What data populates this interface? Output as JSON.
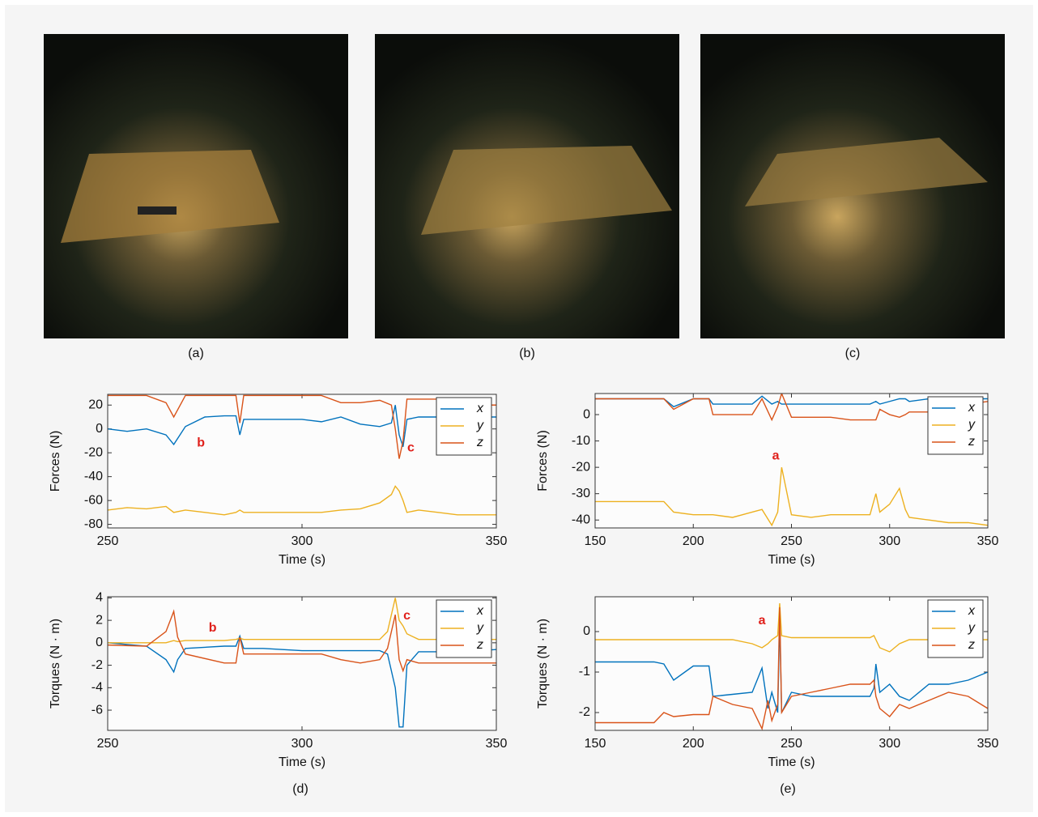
{
  "figure": {
    "photo_captions": [
      "(a)",
      "(b)",
      "(c)"
    ],
    "chart_captions": [
      "(d)",
      "(e)"
    ]
  },
  "chart_data": [
    {
      "type": "line",
      "xlabel": "Time (s)",
      "ylabel": "Forces (N)",
      "legend": "upper right",
      "xlim": [
        250,
        350
      ],
      "xticks": [
        250,
        300,
        350
      ],
      "ylim": [
        -83,
        29
      ],
      "yticks": [
        20,
        0,
        -20,
        -40,
        -60,
        -80
      ],
      "annotations": [
        "b",
        "c"
      ],
      "x": [
        250,
        255,
        260,
        265,
        267,
        270,
        275,
        280,
        283,
        284,
        285,
        290,
        300,
        305,
        310,
        315,
        320,
        323,
        324,
        325,
        326,
        327,
        330,
        335,
        340,
        345,
        350
      ],
      "series": [
        {
          "name": "x",
          "color": "#0072bd",
          "values": [
            0,
            -2,
            0,
            -5,
            -13,
            2,
            10,
            11,
            11,
            -5,
            8,
            8,
            8,
            6,
            10,
            4,
            2,
            5,
            20,
            -5,
            -15,
            8,
            10,
            10,
            10,
            10,
            10
          ]
        },
        {
          "name": "y",
          "color": "#edb120",
          "values": [
            -68,
            -66,
            -67,
            -65,
            -70,
            -68,
            -70,
            -72,
            -70,
            -68,
            -70,
            -70,
            -70,
            -70,
            -68,
            -67,
            -62,
            -55,
            -48,
            -52,
            -60,
            -70,
            -68,
            -70,
            -72,
            -72,
            -72
          ]
        },
        {
          "name": "z",
          "color": "#d95319",
          "values": [
            28,
            28,
            28,
            22,
            10,
            28,
            28,
            28,
            28,
            5,
            28,
            28,
            28,
            28,
            22,
            22,
            24,
            20,
            0,
            -25,
            -10,
            25,
            25,
            25,
            20,
            20,
            20
          ]
        }
      ]
    },
    {
      "type": "line",
      "xlabel": "Time (s)",
      "ylabel": "Forces (N)",
      "legend": "upper right",
      "xlim": [
        150,
        350
      ],
      "xticks": [
        150,
        200,
        250,
        300,
        350
      ],
      "ylim": [
        -43,
        8
      ],
      "yticks": [
        0,
        -10,
        -20,
        -30,
        -40
      ],
      "annotations": [
        "a"
      ],
      "x": [
        150,
        170,
        185,
        190,
        200,
        208,
        210,
        220,
        230,
        235,
        240,
        243,
        245,
        250,
        260,
        270,
        280,
        290,
        293,
        295,
        300,
        305,
        308,
        310,
        320,
        330,
        340,
        350
      ],
      "series": [
        {
          "name": "x",
          "color": "#0072bd",
          "values": [
            6,
            6,
            6,
            3,
            6,
            6,
            4,
            4,
            4,
            7,
            4,
            5,
            4,
            4,
            4,
            4,
            4,
            4,
            5,
            4,
            5,
            6,
            6,
            5,
            6,
            6,
            6,
            6
          ]
        },
        {
          "name": "y",
          "color": "#edb120",
          "values": [
            -33,
            -33,
            -33,
            -37,
            -38,
            -38,
            -38,
            -39,
            -37,
            -36,
            -42,
            -37,
            -20,
            -38,
            -39,
            -38,
            -38,
            -38,
            -30,
            -37,
            -34,
            -28,
            -36,
            -39,
            -40,
            -41,
            -41,
            -42
          ]
        },
        {
          "name": "z",
          "color": "#d95319",
          "values": [
            6,
            6,
            6,
            2,
            6,
            6,
            0,
            0,
            0,
            6,
            -2,
            3,
            8,
            -1,
            -1,
            -1,
            -2,
            -2,
            -2,
            2,
            0,
            -1,
            0,
            1,
            1,
            2,
            4,
            5
          ]
        }
      ]
    },
    {
      "type": "line",
      "xlabel": "Time (s)",
      "ylabel": "Torques (N · m)",
      "legend": "upper right",
      "xlim": [
        250,
        350
      ],
      "xticks": [
        250,
        300,
        350
      ],
      "ylim": [
        -7.8,
        4.1
      ],
      "yticks": [
        4,
        2,
        0,
        -2,
        -4,
        -6
      ],
      "annotations": [
        "b",
        "c"
      ],
      "x": [
        250,
        260,
        265,
        267,
        268,
        270,
        280,
        283,
        284,
        285,
        290,
        300,
        305,
        310,
        315,
        320,
        322,
        324,
        325,
        326,
        327,
        330,
        340,
        350
      ],
      "series": [
        {
          "name": "x",
          "color": "#0072bd",
          "values": [
            0,
            -0.3,
            -1.5,
            -2.6,
            -1.5,
            -0.5,
            -0.3,
            -0.3,
            0.6,
            -0.5,
            -0.5,
            -0.7,
            -0.7,
            -0.7,
            -0.7,
            -0.7,
            -1,
            -4,
            -7.5,
            -7.5,
            -2,
            -0.8,
            -0.8,
            -0.6
          ]
        },
        {
          "name": "y",
          "color": "#edb120",
          "values": [
            0,
            0,
            0,
            0.2,
            0.1,
            0.2,
            0.2,
            0.3,
            0.4,
            0.3,
            0.3,
            0.3,
            0.3,
            0.3,
            0.3,
            0.3,
            1,
            4,
            2,
            1.5,
            0.8,
            0.3,
            0.3,
            0.3
          ]
        },
        {
          "name": "z",
          "color": "#d95319",
          "values": [
            -0.2,
            -0.3,
            1,
            2.8,
            0.5,
            -1,
            -1.8,
            -1.8,
            0.5,
            -1,
            -1,
            -1,
            -1,
            -1.5,
            -1.8,
            -1.5,
            -0.5,
            2.5,
            -1.5,
            -2.5,
            -1.5,
            -1.8,
            -1.8,
            -1.8
          ]
        }
      ]
    },
    {
      "type": "line",
      "xlabel": "Time (s)",
      "ylabel": "Torques (N · m)",
      "legend": "upper right",
      "xlim": [
        150,
        350
      ],
      "xticks": [
        150,
        200,
        250,
        300,
        350
      ],
      "ylim": [
        -2.44,
        0.86
      ],
      "yticks": [
        0,
        -1,
        -2
      ],
      "annotations": [
        "a"
      ],
      "x": [
        150,
        180,
        185,
        190,
        200,
        208,
        210,
        220,
        230,
        235,
        238,
        240,
        243,
        244,
        245,
        250,
        260,
        270,
        280,
        290,
        292,
        293,
        295,
        300,
        305,
        310,
        320,
        330,
        340,
        350
      ],
      "series": [
        {
          "name": "x",
          "color": "#0072bd",
          "values": [
            -0.75,
            -0.75,
            -0.8,
            -1.2,
            -0.85,
            -0.85,
            -1.6,
            -1.55,
            -1.5,
            -0.9,
            -1.9,
            -1.5,
            -2,
            0.3,
            -2,
            -1.5,
            -1.6,
            -1.6,
            -1.6,
            -1.6,
            -1.4,
            -0.8,
            -1.5,
            -1.3,
            -1.6,
            -1.7,
            -1.3,
            -1.3,
            -1.2,
            -1
          ]
        },
        {
          "name": "y",
          "color": "#edb120",
          "values": [
            -0.2,
            -0.2,
            -0.2,
            -0.2,
            -0.2,
            -0.2,
            -0.2,
            -0.2,
            -0.3,
            -0.4,
            -0.3,
            -0.2,
            -0.1,
            0.7,
            -0.1,
            -0.15,
            -0.15,
            -0.15,
            -0.15,
            -0.15,
            -0.1,
            -0.2,
            -0.4,
            -0.5,
            -0.3,
            -0.2,
            -0.2,
            -0.2,
            -0.2,
            -0.2
          ]
        },
        {
          "name": "z",
          "color": "#d95319",
          "values": [
            -2.25,
            -2.25,
            -2.0,
            -2.1,
            -2.05,
            -2.05,
            -1.6,
            -1.8,
            -1.9,
            -2.4,
            -1.7,
            -2.2,
            -1.8,
            0.6,
            -2.0,
            -1.6,
            -1.5,
            -1.4,
            -1.3,
            -1.3,
            -1.2,
            -1.6,
            -1.9,
            -2.1,
            -1.8,
            -1.9,
            -1.7,
            -1.5,
            -1.6,
            -1.9
          ]
        }
      ]
    }
  ]
}
